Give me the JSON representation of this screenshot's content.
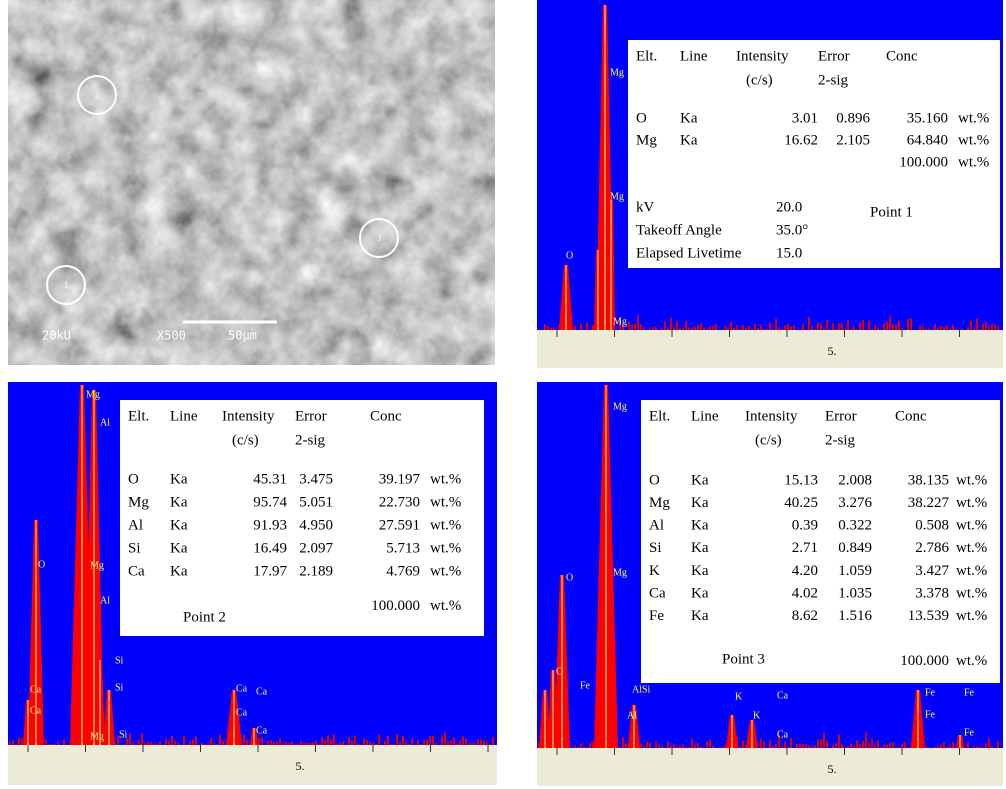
{
  "sem": {
    "voltage": "20kU",
    "magnification": "X500",
    "scale": "50µm",
    "points": [
      "1",
      "2",
      "3"
    ]
  },
  "spectra": [
    {
      "peak_labels": [
        "Mg",
        "Mg",
        "O",
        "Mg"
      ],
      "header": [
        "Elt.",
        "Line",
        "Intensity",
        "Error",
        "Conc"
      ],
      "units": [
        "(c/s)",
        "2-sig"
      ],
      "rows": [
        [
          "O",
          "Ka",
          "3.01",
          "0.896",
          "35.160",
          "wt.%"
        ],
        [
          "Mg",
          "Ka",
          "16.62",
          "2.105",
          "64.840",
          "wt.%"
        ]
      ],
      "total": [
        "100.000",
        "wt.%"
      ],
      "info": [
        [
          "kV",
          "20.0"
        ],
        [
          "Takeoff Angle",
          "35.0°"
        ],
        [
          "Elapsed Livetime",
          "15.0"
        ]
      ],
      "point": "Point 1",
      "axis_label": "5."
    },
    {
      "peak_labels": [
        "Mg",
        "Al",
        "O",
        "Mg",
        "Al",
        "Si",
        "Ca",
        "Si",
        "Ca",
        "Si",
        "Mg",
        "Ca",
        "Ca",
        "Ca",
        "Ca"
      ],
      "header": [
        "Elt.",
        "Line",
        "Intensity",
        "Error",
        "Conc"
      ],
      "units": [
        "(c/s)",
        "2-sig"
      ],
      "rows": [
        [
          "O",
          "Ka",
          "45.31",
          "3.475",
          "39.197",
          "wt.%"
        ],
        [
          "Mg",
          "Ka",
          "95.74",
          "5.051",
          "22.730",
          "wt.%"
        ],
        [
          "Al",
          "Ka",
          "91.93",
          "4.950",
          "27.591",
          "wt.%"
        ],
        [
          "Si",
          "Ka",
          "16.49",
          "2.097",
          "5.713",
          "wt.%"
        ],
        [
          "Ca",
          "Ka",
          "17.97",
          "2.189",
          "4.769",
          "wt.%"
        ]
      ],
      "total": [
        "100.000",
        "wt.%"
      ],
      "point": "Point 2",
      "axis_label": "5."
    },
    {
      "peak_labels": [
        "Mg",
        "Mg",
        "O",
        "O",
        "Fe",
        "AlSi",
        "Ca",
        "K",
        "Fe",
        "Fe",
        "Al",
        "K",
        "Fe",
        "Fe",
        "Ca"
      ],
      "header": [
        "Elt.",
        "Line",
        "Intensity",
        "Error",
        "Conc"
      ],
      "units": [
        "(c/s)",
        "2-sig"
      ],
      "rows": [
        [
          "O",
          "Ka",
          "15.13",
          "2.008",
          "38.135",
          "wt.%"
        ],
        [
          "Mg",
          "Ka",
          "40.25",
          "3.276",
          "38.227",
          "wt.%"
        ],
        [
          "Al",
          "Ka",
          "0.39",
          "0.322",
          "0.508",
          "wt.%"
        ],
        [
          "Si",
          "Ka",
          "2.71",
          "0.849",
          "2.786",
          "wt.%"
        ],
        [
          "K",
          "Ka",
          "4.20",
          "1.059",
          "3.427",
          "wt.%"
        ],
        [
          "Ca",
          "Ka",
          "4.02",
          "1.035",
          "3.378",
          "wt.%"
        ],
        [
          "Fe",
          "Ka",
          "8.62",
          "1.516",
          "13.539",
          "wt.%"
        ]
      ],
      "total": [
        "100.000",
        "wt.%"
      ],
      "point": "Point 3",
      "axis_label": "5."
    }
  ]
}
